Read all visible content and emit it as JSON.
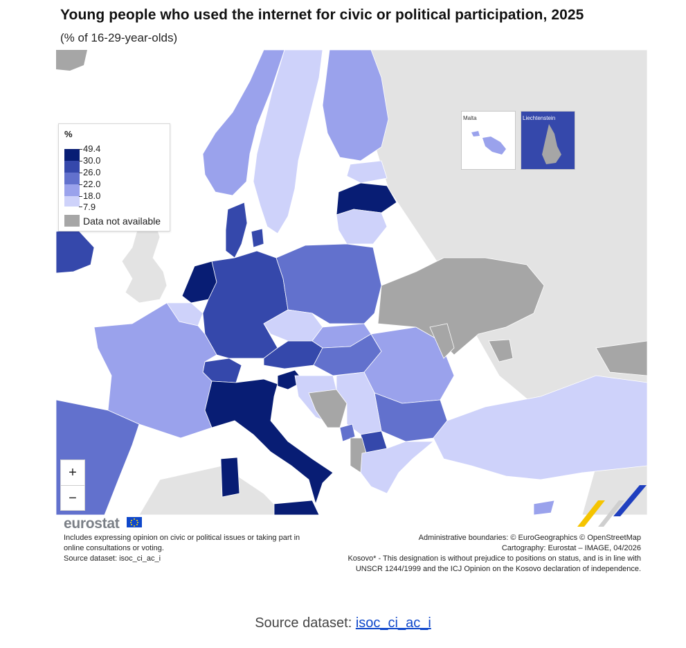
{
  "header": {
    "title": "Young people who used the internet for civic or political participation, 2025",
    "subtitle": "(% of 16-29-year-olds)"
  },
  "legend": {
    "title": "%",
    "classes": [
      {
        "label": "49.4",
        "color": "#081d74"
      },
      {
        "label": "30.0",
        "color": "#3548ab"
      },
      {
        "label": "26.0",
        "color": "#6271cd"
      },
      {
        "label": "22.0",
        "color": "#9aa2ec"
      },
      {
        "label": "18.0",
        "color": "#ced2fa"
      },
      {
        "label": "7.9",
        "color": ""
      }
    ],
    "na_label": "Data not available",
    "na_color": "#a6a6a6"
  },
  "insets": {
    "malta": "Malta",
    "liechtenstein": "Liechtenstein"
  },
  "zoom": {
    "in": "+",
    "out": "−"
  },
  "branding": {
    "logo": "eurostat"
  },
  "notes": {
    "left": [
      "Includes expressing opinion on civic or political issues or taking part in",
      "online consultations or voting.",
      "Source dataset: isoc_ci_ac_i"
    ],
    "right": [
      "Administrative boundaries: © EuroGeographics © OpenStreetMap",
      "Cartography: Eurostat – IMAGE, 04/2026",
      "Kosovo* - This designation is without prejudice to positions on status, and is in line with",
      "UNSCR 1244/1999 and the ICJ Opinion on the Kosovo declaration of independence."
    ]
  },
  "footer": {
    "prefix": "Source dataset: ",
    "link": "isoc_ci_ac_i"
  },
  "colors": {
    "land_other": "#e3e3e3",
    "na": "#a6a6a6",
    "c1": "#081d74",
    "c2": "#3548ab",
    "c3": "#6271cd",
    "c4": "#9aa2ec",
    "c5": "#ced2fa"
  }
}
